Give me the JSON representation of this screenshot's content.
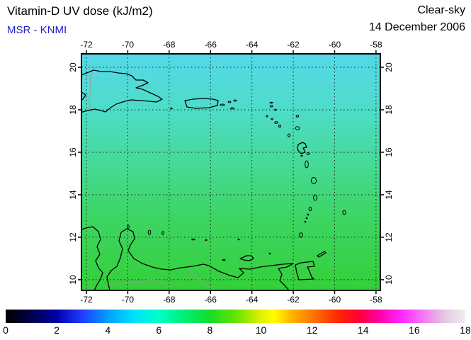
{
  "header": {
    "title": "Vitamin-D UV dose (kJ/m2)",
    "source": "MSR - KNMI",
    "condition": "Clear-sky",
    "date": "14 December 2006"
  },
  "colors": {
    "source_text": "#2222CC",
    "coastline": "#000000",
    "border_lines": "#999999"
  },
  "map": {
    "x_ticks": [
      "-72",
      "-70",
      "-68",
      "-66",
      "-64",
      "-62",
      "-60",
      "-58"
    ],
    "y_ticks": [
      "20",
      "18",
      "16",
      "14",
      "12",
      "10"
    ],
    "sea_gradient": [
      {
        "p": 0,
        "c": "#54D8E8"
      },
      {
        "p": 22,
        "c": "#4EDCCB"
      },
      {
        "p": 45,
        "c": "#46DA9A"
      },
      {
        "p": 68,
        "c": "#3DD565"
      },
      {
        "p": 100,
        "c": "#34D038"
      }
    ]
  },
  "colorbar": {
    "min": 0,
    "max": 18,
    "ticks": [
      "0",
      "2",
      "4",
      "6",
      "8",
      "10",
      "12",
      "14",
      "16",
      "18"
    ],
    "stops": [
      {
        "v": 0,
        "c": "#000000"
      },
      {
        "v": 1,
        "c": "#00004B"
      },
      {
        "v": 2,
        "c": "#0000AA"
      },
      {
        "v": 3,
        "c": "#1E3CFF"
      },
      {
        "v": 4,
        "c": "#00A0FF"
      },
      {
        "v": 5,
        "c": "#00E1FF"
      },
      {
        "v": 6,
        "c": "#00FFC8"
      },
      {
        "v": 7,
        "c": "#00EE77"
      },
      {
        "v": 8,
        "c": "#16DC2A"
      },
      {
        "v": 9,
        "c": "#64E400"
      },
      {
        "v": 10,
        "c": "#E1F000"
      },
      {
        "v": 10.5,
        "c": "#FFFF00"
      },
      {
        "v": 11.2,
        "c": "#FFB400"
      },
      {
        "v": 12,
        "c": "#FF7800"
      },
      {
        "v": 13,
        "c": "#FF2800"
      },
      {
        "v": 13.8,
        "c": "#FF0032"
      },
      {
        "v": 14.6,
        "c": "#FF00A0"
      },
      {
        "v": 15.5,
        "c": "#FF28FF"
      },
      {
        "v": 16.3,
        "c": "#F573F5"
      },
      {
        "v": 17.2,
        "c": "#E3C9E3"
      },
      {
        "v": 18,
        "c": "#EFEFEF"
      }
    ]
  },
  "chart_data": {
    "type": "heatmap",
    "title": "Vitamin-D UV dose (kJ/m2)",
    "condition": "Clear-sky",
    "date": "14 December 2006",
    "lon_ticks": [
      -72,
      -70,
      -68,
      -66,
      -64,
      -62,
      -60,
      -58
    ],
    "lat_ticks": [
      20,
      18,
      16,
      14,
      12,
      10
    ],
    "value_scale": {
      "min": 0,
      "max": 18,
      "ticks": [
        0,
        2,
        4,
        6,
        8,
        10,
        12,
        14,
        16,
        18
      ],
      "unit": "kJ/m2"
    },
    "approx_values_by_latitude": [
      {
        "lat": 20,
        "value": 5.3
      },
      {
        "lat": 18,
        "value": 5.7
      },
      {
        "lat": 16,
        "value": 6.2
      },
      {
        "lat": 14,
        "value": 6.7
      },
      {
        "lat": 12,
        "value": 7.2
      },
      {
        "lat": 10,
        "value": 7.7
      }
    ],
    "legend_position": "bottom"
  }
}
